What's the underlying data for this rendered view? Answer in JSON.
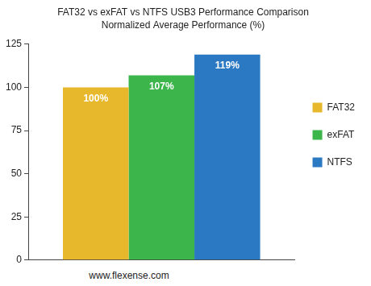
{
  "chart_data": {
    "type": "bar",
    "title": "FAT32 vs exFAT vs NTFS USB3 Performance Comparison",
    "subtitle": "Normalized Average Performance (%)",
    "annotations": [
      "www.flexense.com"
    ],
    "categories": [
      null
    ],
    "series": [
      {
        "name": "FAT32",
        "color": "#e8b82c",
        "values": [
          100
        ],
        "value_labels": [
          "100%"
        ]
      },
      {
        "name": "exFAT",
        "color": "#3cb54a",
        "values": [
          107
        ],
        "value_labels": [
          "107%"
        ]
      },
      {
        "name": "NTFS",
        "color": "#2b79c2",
        "values": [
          119
        ],
        "value_labels": [
          "119%"
        ]
      }
    ],
    "ylim": [
      0,
      125
    ],
    "yticks": [
      0,
      25,
      50,
      75,
      100,
      125
    ],
    "grid": false,
    "legend": "right",
    "data_labels": true,
    "tick_labels": "y"
  }
}
